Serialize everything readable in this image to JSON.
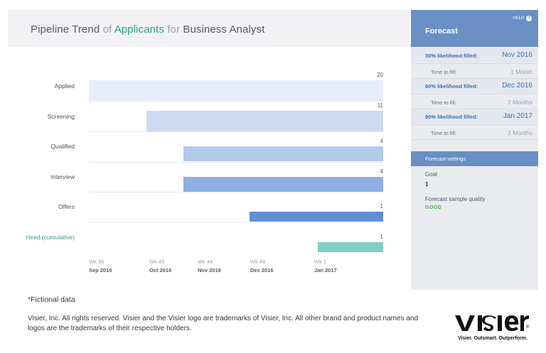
{
  "header": {
    "title_part1": "Pipeline Trend",
    "title_of": "of",
    "title_metric": "Applicants",
    "title_for": "for",
    "title_subject": "Business Analyst"
  },
  "chart_data": {
    "type": "bar",
    "orientation": "horizontal",
    "title": "Pipeline Trend of Applicants for Business Analyst",
    "categories": [
      "Applied",
      "Screening",
      "Qualified",
      "Interview",
      "Offers",
      "Hired (cumulative)"
    ],
    "values": [
      20,
      11,
      4,
      4,
      1,
      1
    ],
    "bar_start_weeks": [
      "Wk 35",
      "Wk 39",
      "Wk 42",
      "Wk 42",
      "Wk 47",
      "Wk 52"
    ],
    "x_ticks": [
      {
        "week": "Wk 36",
        "date": "Sep 2016"
      },
      {
        "week": "Wk 40",
        "date": "Oct 2016"
      },
      {
        "week": "Wk 44",
        "date": "Nov 2016"
      },
      {
        "week": "Wk 48",
        "date": "Dec 2016"
      },
      {
        "week": "Wk 1",
        "date": "Jan 2017"
      }
    ],
    "colors": [
      "#e6ecf8",
      "#ccdbf1",
      "#b2caec",
      "#8fb0e2",
      "#5f8fd3",
      "#7ecfc3"
    ]
  },
  "sidebar": {
    "help_label": "HELP",
    "title": "Forecast",
    "forecasts": [
      {
        "label": "30% likelihood filled:",
        "value": "Nov 2016",
        "time_label": "Time to fill:",
        "time_value": "1 Month"
      },
      {
        "label": "60% likelihood filled:",
        "value": "Dec 2016",
        "time_label": "Time to fill:",
        "time_value": "2 Months"
      },
      {
        "label": "90% likelihood filled:",
        "value": "Jan 2017",
        "time_label": "Time to fill:",
        "time_value": "3 Months"
      }
    ],
    "settings_title": "Forecast settings",
    "goal_label": "Goal",
    "goal_value": "1",
    "quality_label": "Forecast sample quality",
    "quality_value": "GOOD"
  },
  "footer": {
    "note": "*Fictional data",
    "legal": "Visier, Inc. All rights reserved. Visier and the Visier logo are trademarks of Visier, Inc. All other brand and product names and logos are the trademarks of their respective holders.",
    "logo_text": "visier",
    "logo_tagline": "Visier. Outsmart. Outperform."
  }
}
